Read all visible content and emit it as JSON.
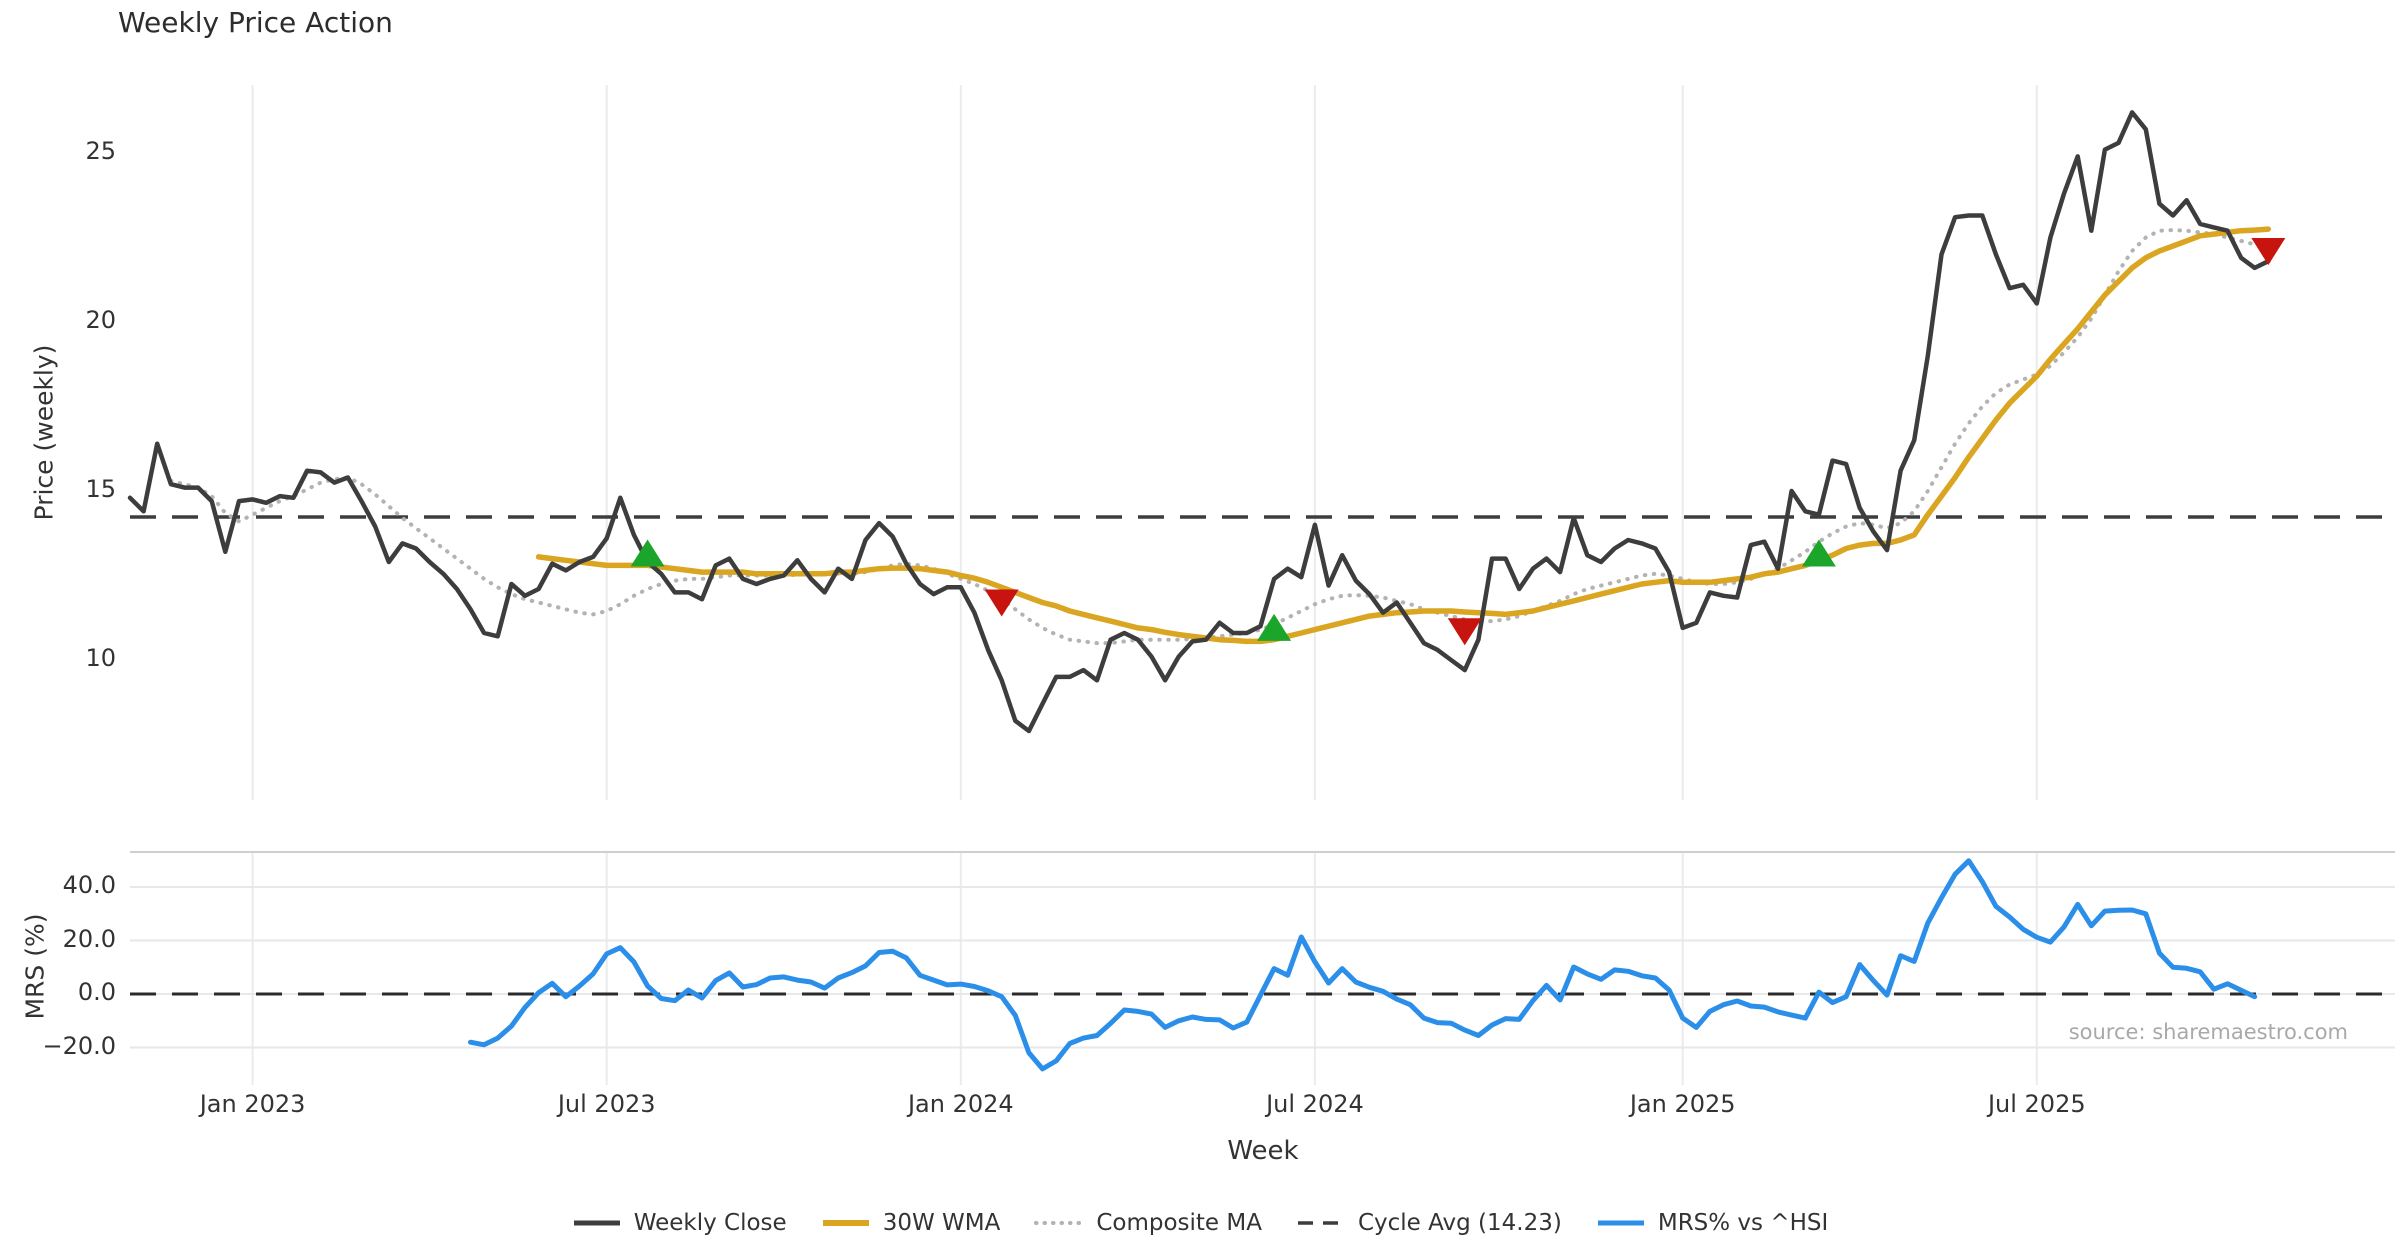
{
  "chart": {
    "title": "Weekly Price Action",
    "price_axis_label": "Price (weekly)",
    "mrs_axis_label": "MRS (%)",
    "x_axis_label": "Week",
    "source_text": "source: sharemaestro.com"
  },
  "legend": {
    "items": [
      {
        "label": "Weekly Close",
        "color": "#3d3d3d",
        "style": "solid",
        "width": 5
      },
      {
        "label": "30W WMA",
        "color": "#daa520",
        "style": "solid",
        "width": 6
      },
      {
        "label": "Composite MA",
        "color": "#b3b3b3",
        "style": "dotted",
        "width": 4
      },
      {
        "label": "Cycle Avg (14.23)",
        "color": "#3d3d3d",
        "style": "dashed",
        "width": 3.5
      },
      {
        "label": "MRS% vs ^HSI",
        "color": "#2b8fea",
        "style": "solid",
        "width": 5
      }
    ]
  },
  "chart_data": {
    "type": "line",
    "title": "Weekly Price Action",
    "x_label": "Week",
    "grid": true,
    "legend_position": "bottom",
    "x_ticks": [
      {
        "label": "Jan 2023",
        "week": 9
      },
      {
        "label": "Jul 2023",
        "week": 35
      },
      {
        "label": "Jan 2024",
        "week": 61
      },
      {
        "label": "Jul 2024",
        "week": 87
      },
      {
        "label": "Jan 2025",
        "week": 114
      },
      {
        "label": "Jul 2025",
        "week": 140
      }
    ],
    "price_panel": {
      "y_label": "Price (weekly)",
      "ylim": [
        6.8,
        27.0
      ],
      "y_ticks": [
        {
          "label": "25",
          "value": 25
        },
        {
          "label": "20",
          "value": 20
        },
        {
          "label": "15",
          "value": 15
        },
        {
          "label": "10",
          "value": 10
        }
      ],
      "cycle_avg": 14.23,
      "series": [
        {
          "name": "Weekly Close",
          "color": "#3d3d3d",
          "style": "solid",
          "start_week": 0,
          "values": [
            14.8,
            14.4,
            16.4,
            15.2,
            15.1,
            15.1,
            14.7,
            13.2,
            14.7,
            14.75,
            14.65,
            14.85,
            14.8,
            15.6,
            15.55,
            15.25,
            15.4,
            14.7,
            13.95,
            12.9,
            13.45,
            13.3,
            12.9,
            12.55,
            12.1,
            11.5,
            10.8,
            10.7,
            12.25,
            11.9,
            12.1,
            12.85,
            12.65,
            12.9,
            13.05,
            13.6,
            14.8,
            13.7,
            12.9,
            12.55,
            12.0,
            12.0,
            11.8,
            12.8,
            13.0,
            12.4,
            12.25,
            12.4,
            12.5,
            12.95,
            12.4,
            12.0,
            12.7,
            12.4,
            13.55,
            14.05,
            13.65,
            12.85,
            12.25,
            11.95,
            12.15,
            12.15,
            11.4,
            10.3,
            9.4,
            8.2,
            7.9,
            8.7,
            9.5,
            9.5,
            9.7,
            9.4,
            10.6,
            10.8,
            10.6,
            10.1,
            9.4,
            10.1,
            10.55,
            10.6,
            11.1,
            10.8,
            10.8,
            11.0,
            12.4,
            12.7,
            12.45,
            14.0,
            12.2,
            13.1,
            12.35,
            11.95,
            11.4,
            11.7,
            11.1,
            10.5,
            10.3,
            10.0,
            9.7,
            10.6,
            13.0,
            13.0,
            12.1,
            12.7,
            13.0,
            12.6,
            14.2,
            13.1,
            12.9,
            13.3,
            13.55,
            13.45,
            13.3,
            12.6,
            10.95,
            11.1,
            12.0,
            11.9,
            11.85,
            13.4,
            13.5,
            12.7,
            15.0,
            14.4,
            14.3,
            15.9,
            15.8,
            14.5,
            13.8,
            13.25,
            15.6,
            16.5,
            19.0,
            22.0,
            23.1,
            23.15,
            23.15,
            22.0,
            21.0,
            21.1,
            20.55,
            22.5,
            23.8,
            24.9,
            22.7,
            25.1,
            25.3,
            26.2,
            25.7,
            23.5,
            23.15,
            23.6,
            22.9,
            22.8,
            22.7,
            21.9,
            21.6,
            21.8
          ]
        },
        {
          "name": "30W WMA",
          "color": "#daa520",
          "style": "solid",
          "start_week": 30,
          "values": [
            13.05,
            13.0,
            12.95,
            12.9,
            12.85,
            12.8,
            12.8,
            12.8,
            12.8,
            12.75,
            12.7,
            12.65,
            12.6,
            12.6,
            12.6,
            12.6,
            12.55,
            12.55,
            12.55,
            12.55,
            12.55,
            12.55,
            12.6,
            12.6,
            12.65,
            12.7,
            12.72,
            12.72,
            12.7,
            12.65,
            12.6,
            12.5,
            12.42,
            12.3,
            12.15,
            12.0,
            11.85,
            11.7,
            11.6,
            11.45,
            11.35,
            11.25,
            11.15,
            11.05,
            10.95,
            10.9,
            10.82,
            10.75,
            10.7,
            10.65,
            10.6,
            10.58,
            10.55,
            10.55,
            10.6,
            10.7,
            10.8,
            10.9,
            11.0,
            11.1,
            11.2,
            11.3,
            11.35,
            11.4,
            11.42,
            11.45,
            11.45,
            11.45,
            11.42,
            11.4,
            11.38,
            11.35,
            11.4,
            11.45,
            11.55,
            11.65,
            11.75,
            11.85,
            11.95,
            12.05,
            12.15,
            12.25,
            12.3,
            12.35,
            12.3,
            12.3,
            12.3,
            12.35,
            12.4,
            12.45,
            12.55,
            12.6,
            12.7,
            12.8,
            12.95,
            13.1,
            13.3,
            13.4,
            13.45,
            13.45,
            13.55,
            13.7,
            14.3,
            14.85,
            15.4,
            16.0,
            16.55,
            17.1,
            17.6,
            18.0,
            18.4,
            18.9,
            19.35,
            19.8,
            20.3,
            20.8,
            21.2,
            21.6,
            21.9,
            22.1,
            22.25,
            22.4,
            22.55,
            22.6,
            22.65,
            22.7,
            22.72,
            22.75
          ]
        },
        {
          "name": "Composite MA",
          "color": "#b3b3b3",
          "style": "dotted",
          "start_week": 3,
          "values": [
            15.3,
            15.2,
            15.1,
            14.85,
            14.35,
            14.1,
            14.3,
            14.5,
            14.7,
            14.85,
            15.05,
            15.25,
            15.35,
            15.4,
            15.2,
            14.9,
            14.55,
            14.2,
            13.9,
            13.6,
            13.3,
            13.0,
            12.7,
            12.4,
            12.15,
            11.95,
            11.8,
            11.7,
            11.6,
            11.5,
            11.4,
            11.35,
            11.45,
            11.65,
            11.9,
            12.1,
            12.25,
            12.35,
            12.4,
            12.4,
            12.45,
            12.5,
            12.5,
            12.5,
            12.5,
            12.5,
            12.52,
            12.55,
            12.55,
            12.55,
            12.55,
            12.6,
            12.7,
            12.8,
            12.85,
            12.8,
            12.7,
            12.55,
            12.4,
            12.25,
            12.05,
            11.8,
            11.5,
            11.2,
            10.95,
            10.75,
            10.6,
            10.55,
            10.5,
            10.5,
            10.55,
            10.6,
            10.6,
            10.6,
            10.6,
            10.62,
            10.65,
            10.7,
            10.75,
            10.8,
            10.9,
            11.05,
            11.25,
            11.45,
            11.65,
            11.8,
            11.9,
            11.92,
            11.9,
            11.85,
            11.75,
            11.65,
            11.5,
            11.4,
            11.3,
            11.2,
            11.15,
            11.15,
            11.2,
            11.3,
            11.45,
            11.6,
            11.75,
            11.95,
            12.1,
            12.2,
            12.3,
            12.4,
            12.5,
            12.55,
            12.5,
            12.4,
            12.3,
            12.25,
            12.25,
            12.3,
            12.4,
            12.55,
            12.7,
            12.95,
            13.2,
            13.5,
            13.75,
            13.95,
            14.05,
            14.0,
            13.9,
            14.05,
            14.4,
            15.0,
            15.7,
            16.4,
            17.0,
            17.5,
            17.9,
            18.15,
            18.3,
            18.45,
            18.7,
            19.1,
            19.55,
            20.1,
            20.8,
            21.5,
            22.1,
            22.5,
            22.7,
            22.72,
            22.7,
            22.65,
            22.6,
            22.5,
            22.4,
            22.3,
            22.28
          ]
        }
      ],
      "signals": {
        "buy": [
          {
            "week": 38,
            "price": 13.15
          },
          {
            "week": 84,
            "price": 10.95
          },
          {
            "week": 124,
            "price": 13.15
          }
        ],
        "sell": [
          {
            "week": 64,
            "price": 11.7
          },
          {
            "week": 98,
            "price": 10.85
          },
          {
            "week": 157,
            "price": 22.1
          }
        ]
      }
    },
    "mrs_panel": {
      "y_label": "MRS (%)",
      "ylim": [
        -34,
        53
      ],
      "zero_line": 0,
      "y_ticks": [
        {
          "label": "40.0",
          "value": 40
        },
        {
          "label": "20.0",
          "value": 20
        },
        {
          "label": "0.0",
          "value": 0
        },
        {
          "label": "−20.0",
          "value": -20
        }
      ],
      "series": [
        {
          "name": "MRS% vs ^HSI",
          "color": "#2b8fea",
          "style": "solid",
          "start_week": 25,
          "values": [
            -18,
            -19,
            -16.5,
            -12,
            -5,
            0.5,
            4,
            -1,
            3,
            7.5,
            15,
            17.3,
            12,
            3,
            -1.7,
            -2.5,
            1.5,
            -1.5,
            5,
            7.9,
            2.6,
            3.5,
            6,
            6.4,
            5.2,
            4.5,
            2.2,
            6,
            8,
            10.5,
            15.5,
            16,
            13.5,
            7,
            5.2,
            3.4,
            3.7,
            2.8,
            1.2,
            -1,
            -8,
            -22,
            -28,
            -25,
            -18.5,
            -16.5,
            -15.5,
            -11,
            -6,
            -6.5,
            -7.5,
            -12.5,
            -10,
            -8.6,
            -9.5,
            -9.7,
            -12.7,
            -10.5,
            -0.4,
            9.5,
            7,
            21.3,
            12,
            4.1,
            9.5,
            4.5,
            2.5,
            1,
            -1.9,
            -4,
            -9,
            -10.7,
            -10.9,
            -13.5,
            -15.5,
            -11.6,
            -9.2,
            -9.5,
            -2.5,
            3.2,
            -2.2,
            10.1,
            7.5,
            5.5,
            9,
            8.5,
            6.8,
            6,
            1.5,
            -9,
            -12.5,
            -6.5,
            -4,
            -2.6,
            -4.5,
            -4.9,
            -6.7,
            -7.9,
            -9,
            0.7,
            -3.2,
            -1,
            11,
            5,
            -0.4,
            14.3,
            12.2,
            26.5,
            36,
            44.8,
            49.8,
            42,
            32.8,
            28.8,
            24.2,
            21.2,
            19.4,
            25.1,
            33.5,
            25.5,
            31,
            31.3,
            31.4,
            30,
            15.3,
            10,
            9.6,
            8.3,
            1.8,
            3.8,
            1.4,
            -1
          ]
        }
      ]
    },
    "colors": {
      "weekly_close": "#3d3d3d",
      "wma": "#daa520",
      "composite": "#b3b3b3",
      "cycle_avg": "#3d3d3d",
      "mrs": "#2b8fea",
      "buy_marker": "#1ca52b",
      "sell_marker": "#c8140f",
      "grid": "#ebebeb",
      "panel_border": "#cfcfcf"
    }
  }
}
